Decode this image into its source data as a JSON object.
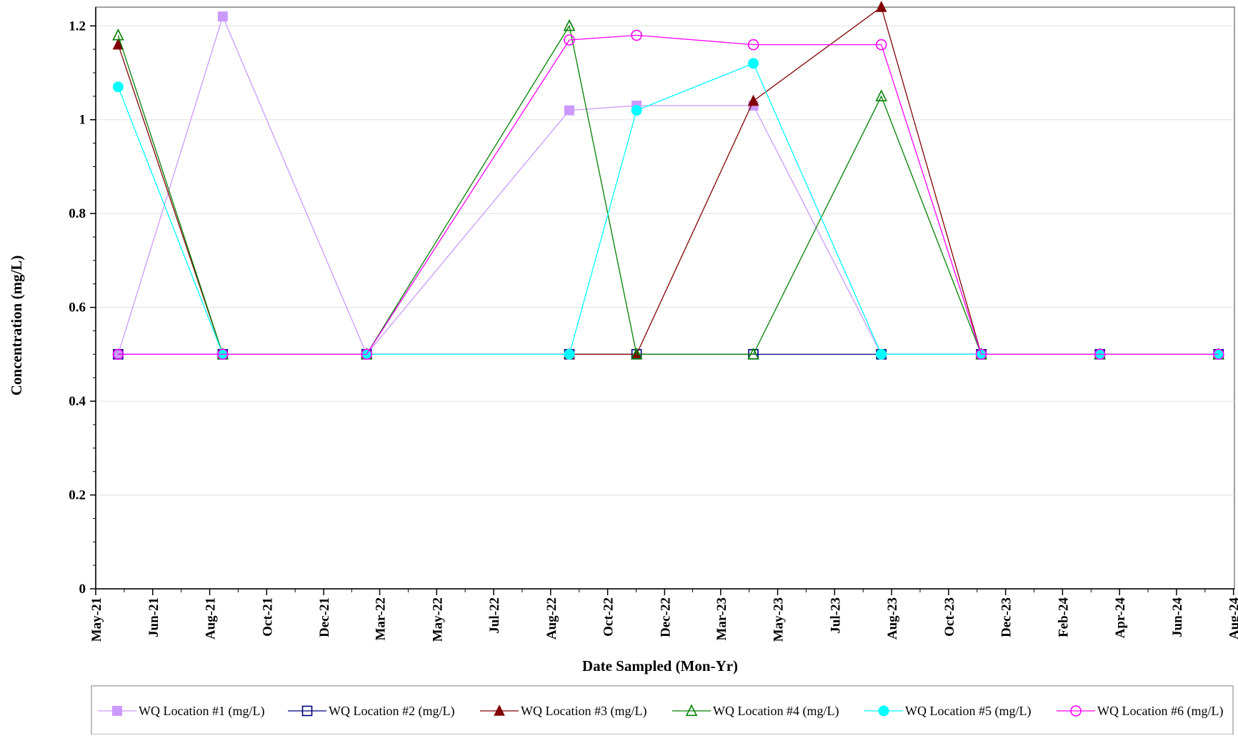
{
  "chart_data": {
    "type": "line",
    "xlabel": "Date Sampled (Mon-Yr)",
    "ylabel": "Concentration (mg/L)",
    "xlim": [
      "2021-05-01",
      "2024-09-01"
    ],
    "ylim": [
      0,
      1.24
    ],
    "y_ticks": [
      0,
      0.2,
      0.4,
      0.6,
      0.8,
      1,
      1.2
    ],
    "y_tick_labels": [
      "0",
      "0.2",
      "0.4",
      "0.6",
      "0.8",
      "1",
      "1.2"
    ],
    "x_tick_labels": [
      "May-21",
      "Jun-21",
      "Aug-21",
      "Oct-21",
      "Dec-21",
      "Mar-22",
      "May-22",
      "Jul-22",
      "Aug-22",
      "Oct-22",
      "Dec-22",
      "Mar-23",
      "May-23",
      "Jul-23",
      "Aug-23",
      "Oct-23",
      "Dec-23",
      "Feb-24",
      "Apr-24",
      "Jun-24",
      "Aug-24"
    ],
    "x_tick_dates": [
      "2021-05-01",
      "2021-07-01",
      "2021-08-31",
      "2021-10-31",
      "2021-12-31",
      "2022-03-01",
      "2022-05-01",
      "2022-07-01",
      "2022-08-31",
      "2022-10-31",
      "2022-12-31",
      "2023-03-01",
      "2023-05-01",
      "2023-07-01",
      "2023-08-31",
      "2023-10-31",
      "2023-12-31",
      "2024-03-01",
      "2024-05-01",
      "2024-07-01",
      "2024-08-31"
    ],
    "grid": "horizontal",
    "legend_position": "bottom",
    "series": [
      {
        "name": "WQ Location #1 (mg/L)",
        "color": "#cc99ff",
        "marker": "square-filled",
        "points": [
          [
            "2021-05-25",
            0.5
          ],
          [
            "2021-09-14",
            1.22
          ],
          [
            "2022-02-15",
            0.5
          ],
          [
            "2022-09-20",
            1.02
          ],
          [
            "2022-12-01",
            1.03
          ],
          [
            "2023-04-05",
            1.03
          ],
          [
            "2023-08-20",
            0.5
          ],
          [
            "2023-12-05",
            0.5
          ],
          [
            "2024-04-10",
            0.5
          ],
          [
            "2024-08-15",
            0.5
          ]
        ]
      },
      {
        "name": "WQ Location #2 (mg/L)",
        "color": "#000080",
        "marker": "square-open",
        "points": [
          [
            "2021-05-25",
            0.5
          ],
          [
            "2021-09-14",
            0.5
          ],
          [
            "2022-02-15",
            0.5
          ],
          [
            "2022-09-20",
            0.5
          ],
          [
            "2022-12-01",
            0.5
          ],
          [
            "2023-04-05",
            0.5
          ],
          [
            "2023-08-20",
            0.5
          ],
          [
            "2023-12-05",
            0.5
          ],
          [
            "2024-04-10",
            0.5
          ],
          [
            "2024-08-15",
            0.5
          ]
        ]
      },
      {
        "name": "WQ Location #3 (mg/L)",
        "color": "#800000",
        "marker": "triangle-filled",
        "points": [
          [
            "2021-05-25",
            1.16
          ],
          [
            "2021-09-14",
            0.5
          ],
          [
            "2022-02-15",
            0.5
          ],
          [
            "2022-09-20",
            0.5
          ],
          [
            "2022-12-01",
            0.5
          ],
          [
            "2023-04-05",
            1.04
          ],
          [
            "2023-08-20",
            1.24
          ],
          [
            "2023-12-05",
            0.5
          ],
          [
            "2024-04-10",
            0.5
          ],
          [
            "2024-08-15",
            0.5
          ]
        ]
      },
      {
        "name": "WQ Location #4 (mg/L)",
        "color": "#008000",
        "marker": "triangle-open",
        "points": [
          [
            "2021-05-25",
            1.18
          ],
          [
            "2021-09-14",
            0.5
          ],
          [
            "2022-02-15",
            0.5
          ],
          [
            "2022-09-20",
            1.2
          ],
          [
            "2022-12-01",
            0.5
          ],
          [
            "2023-04-05",
            0.5
          ],
          [
            "2023-08-20",
            1.05
          ],
          [
            "2023-12-05",
            0.5
          ],
          [
            "2024-04-10",
            0.5
          ],
          [
            "2024-08-15",
            0.5
          ]
        ]
      },
      {
        "name": "WQ Location #5 (mg/L)",
        "color": "#00ffff",
        "marker": "circle-filled",
        "points": [
          [
            "2021-05-25",
            1.07
          ],
          [
            "2021-09-14",
            0.5
          ],
          [
            "2022-02-15",
            0.5
          ],
          [
            "2022-09-20",
            0.5
          ],
          [
            "2022-12-01",
            1.02
          ],
          [
            "2023-04-05",
            1.12
          ],
          [
            "2023-08-20",
            0.5
          ],
          [
            "2023-12-05",
            0.5
          ],
          [
            "2024-04-10",
            0.5
          ],
          [
            "2024-08-15",
            0.5
          ]
        ]
      },
      {
        "name": "WQ Location #6 (mg/L)",
        "color": "#ff00ff",
        "marker": "circle-open",
        "points": [
          [
            "2021-05-25",
            0.5
          ],
          [
            "2021-09-14",
            0.5
          ],
          [
            "2022-02-15",
            0.5
          ],
          [
            "2022-09-20",
            1.17
          ],
          [
            "2022-12-01",
            1.18
          ],
          [
            "2023-04-05",
            1.16
          ],
          [
            "2023-08-20",
            1.16
          ],
          [
            "2023-12-05",
            0.5
          ],
          [
            "2024-04-10",
            0.5
          ],
          [
            "2024-08-15",
            0.5
          ]
        ]
      }
    ]
  }
}
